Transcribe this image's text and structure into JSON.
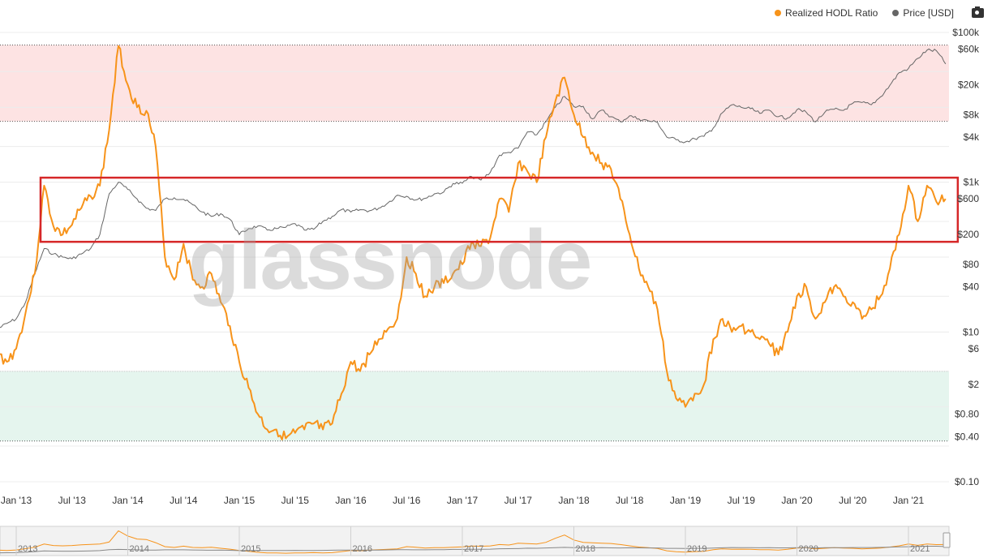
{
  "legend": {
    "hodl_label": "Realized HODL Ratio",
    "price_label": "Price [USD]",
    "hodl_color": "#f7931a",
    "price_color": "#666666",
    "camera_icon": "camera-icon"
  },
  "watermark": "glassnode",
  "chart_data": {
    "type": "line",
    "y_scale": "log",
    "ylim": [
      0.1,
      120000
    ],
    "y_ticks": [
      {
        "label": "$100k",
        "value": 100000
      },
      {
        "label": "$60k",
        "value": 60000
      },
      {
        "label": "$20k",
        "value": 20000
      },
      {
        "label": "$8k",
        "value": 8000
      },
      {
        "label": "$4k",
        "value": 4000
      },
      {
        "label": "$1k",
        "value": 1000
      },
      {
        "label": "$600",
        "value": 600
      },
      {
        "label": "$200",
        "value": 200
      },
      {
        "label": "$80",
        "value": 80
      },
      {
        "label": "$40",
        "value": 40
      },
      {
        "label": "$10",
        "value": 10
      },
      {
        "label": "$6",
        "value": 6
      },
      {
        "label": "$2",
        "value": 2
      },
      {
        "label": "$0.80",
        "value": 0.8
      },
      {
        "label": "$0.40",
        "value": 0.4
      },
      {
        "label": "$0.10",
        "value": 0.1
      }
    ],
    "x_ticks": [
      "Jan '13",
      "Jul '13",
      "Jan '14",
      "Jul '14",
      "Jan '15",
      "Jul '15",
      "Jan '16",
      "Jul '16",
      "Jan '17",
      "Jul '17",
      "Jan '18",
      "Jul '18",
      "Jan '19",
      "Jul '19",
      "Jan '20",
      "Jul '20",
      "Jan '21"
    ],
    "navigator_years": [
      "2013",
      "2014",
      "2015",
      "2016",
      "2017",
      "2018",
      "2019",
      "2020",
      "2021"
    ],
    "bands": [
      {
        "from": 6500,
        "to": 68000,
        "color": "#fde3e3"
      },
      {
        "from": 0.35,
        "to": 3,
        "color": "#e5f5ee"
      }
    ],
    "highlight_box": {
      "from": 160,
      "to": 1150,
      "x_start": "2013-01",
      "x_end": "2021-05",
      "color": "#d62728"
    },
    "series": [
      {
        "name": "Realized HODL Ratio",
        "color": "#f7931a",
        "points": [
          [
            "2012-11",
            5
          ],
          [
            "2012-12",
            4
          ],
          [
            "2013-01",
            6
          ],
          [
            "2013-02",
            18
          ],
          [
            "2013-03",
            60
          ],
          [
            "2013-04",
            900
          ],
          [
            "2013-05",
            260
          ],
          [
            "2013-06",
            200
          ],
          [
            "2013-07",
            270
          ],
          [
            "2013-08",
            450
          ],
          [
            "2013-09",
            650
          ],
          [
            "2013-10",
            900
          ],
          [
            "2013-11",
            5000
          ],
          [
            "2013-12",
            66000
          ],
          [
            "2014-01",
            20000
          ],
          [
            "2014-02",
            10000
          ],
          [
            "2014-03",
            9000
          ],
          [
            "2014-04",
            3000
          ],
          [
            "2014-05",
            100
          ],
          [
            "2014-06",
            50
          ],
          [
            "2014-07",
            150
          ],
          [
            "2014-08",
            50
          ],
          [
            "2014-09",
            40
          ],
          [
            "2014-10",
            60
          ],
          [
            "2014-11",
            25
          ],
          [
            "2014-12",
            12
          ],
          [
            "2015-01",
            4
          ],
          [
            "2015-02",
            1.8
          ],
          [
            "2015-03",
            0.8
          ],
          [
            "2015-04",
            0.5
          ],
          [
            "2015-05",
            0.5
          ],
          [
            "2015-06",
            0.38
          ],
          [
            "2015-07",
            0.45
          ],
          [
            "2015-08",
            0.5
          ],
          [
            "2015-09",
            0.6
          ],
          [
            "2015-10",
            0.5
          ],
          [
            "2015-11",
            0.6
          ],
          [
            "2015-12",
            1.5
          ],
          [
            "2016-01",
            4
          ],
          [
            "2016-02",
            3
          ],
          [
            "2016-03",
            5
          ],
          [
            "2016-04",
            8
          ],
          [
            "2016-05",
            11
          ],
          [
            "2016-06",
            15
          ],
          [
            "2016-07",
            100
          ],
          [
            "2016-08",
            60
          ],
          [
            "2016-09",
            30
          ],
          [
            "2016-10",
            40
          ],
          [
            "2016-11",
            45
          ],
          [
            "2016-12",
            60
          ],
          [
            "2017-01",
            80
          ],
          [
            "2017-02",
            160
          ],
          [
            "2017-03",
            140
          ],
          [
            "2017-04",
            180
          ],
          [
            "2017-05",
            600
          ],
          [
            "2017-06",
            400
          ],
          [
            "2017-07",
            1800
          ],
          [
            "2017-08",
            1400
          ],
          [
            "2017-09",
            1000
          ],
          [
            "2017-10",
            4000
          ],
          [
            "2017-11",
            12000
          ],
          [
            "2017-12",
            25000
          ],
          [
            "2018-01",
            8000
          ],
          [
            "2018-02",
            4000
          ],
          [
            "2018-03",
            2500
          ],
          [
            "2018-04",
            1800
          ],
          [
            "2018-05",
            1500
          ],
          [
            "2018-06",
            600
          ],
          [
            "2018-07",
            200
          ],
          [
            "2018-08",
            70
          ],
          [
            "2018-09",
            40
          ],
          [
            "2018-10",
            20
          ],
          [
            "2018-11",
            3
          ],
          [
            "2018-12",
            1.3
          ],
          [
            "2019-01",
            1
          ],
          [
            "2019-02",
            1.5
          ],
          [
            "2019-03",
            2
          ],
          [
            "2019-04",
            8
          ],
          [
            "2019-05",
            15
          ],
          [
            "2019-06",
            10
          ],
          [
            "2019-07",
            12
          ],
          [
            "2019-08",
            10
          ],
          [
            "2019-09",
            8
          ],
          [
            "2019-10",
            7
          ],
          [
            "2019-11",
            5
          ],
          [
            "2019-12",
            10
          ],
          [
            "2020-01",
            30
          ],
          [
            "2020-02",
            40
          ],
          [
            "2020-03",
            15
          ],
          [
            "2020-04",
            25
          ],
          [
            "2020-05",
            40
          ],
          [
            "2020-06",
            30
          ],
          [
            "2020-07",
            25
          ],
          [
            "2020-08",
            15
          ],
          [
            "2020-09",
            20
          ],
          [
            "2020-10",
            30
          ],
          [
            "2020-11",
            70
          ],
          [
            "2020-12",
            200
          ],
          [
            "2021-01",
            900
          ],
          [
            "2021-02",
            300
          ],
          [
            "2021-03",
            900
          ],
          [
            "2021-04",
            550
          ],
          [
            "2021-05",
            600
          ]
        ]
      },
      {
        "name": "Price [USD]",
        "color": "#666666",
        "points": [
          [
            "2012-11",
            11
          ],
          [
            "2012-12",
            13
          ],
          [
            "2013-01",
            15
          ],
          [
            "2013-02",
            25
          ],
          [
            "2013-03",
            60
          ],
          [
            "2013-04",
            130
          ],
          [
            "2013-05",
            110
          ],
          [
            "2013-06",
            100
          ],
          [
            "2013-07",
            95
          ],
          [
            "2013-08",
            110
          ],
          [
            "2013-09",
            130
          ],
          [
            "2013-10",
            200
          ],
          [
            "2013-11",
            700
          ],
          [
            "2013-12",
            1000
          ],
          [
            "2014-01",
            800
          ],
          [
            "2014-02",
            600
          ],
          [
            "2014-03",
            450
          ],
          [
            "2014-04",
            420
          ],
          [
            "2014-05",
            600
          ],
          [
            "2014-06",
            620
          ],
          [
            "2014-07",
            590
          ],
          [
            "2014-08",
            500
          ],
          [
            "2014-09",
            400
          ],
          [
            "2014-10",
            350
          ],
          [
            "2014-11",
            380
          ],
          [
            "2014-12",
            320
          ],
          [
            "2015-01",
            200
          ],
          [
            "2015-02",
            240
          ],
          [
            "2015-03",
            260
          ],
          [
            "2015-04",
            230
          ],
          [
            "2015-05",
            240
          ],
          [
            "2015-06",
            250
          ],
          [
            "2015-07",
            280
          ],
          [
            "2015-08",
            230
          ],
          [
            "2015-09",
            235
          ],
          [
            "2015-10",
            300
          ],
          [
            "2015-11",
            350
          ],
          [
            "2015-12",
            430
          ],
          [
            "2016-01",
            400
          ],
          [
            "2016-02",
            430
          ],
          [
            "2016-03",
            415
          ],
          [
            "2016-04",
            450
          ],
          [
            "2016-05",
            530
          ],
          [
            "2016-06",
            670
          ],
          [
            "2016-07",
            650
          ],
          [
            "2016-08",
            580
          ],
          [
            "2016-09",
            610
          ],
          [
            "2016-10",
            700
          ],
          [
            "2016-11",
            740
          ],
          [
            "2016-12",
            960
          ],
          [
            "2017-01",
            970
          ],
          [
            "2017-02",
            1190
          ],
          [
            "2017-03",
            1070
          ],
          [
            "2017-04",
            1350
          ],
          [
            "2017-05",
            2300
          ],
          [
            "2017-06",
            2500
          ],
          [
            "2017-07",
            2850
          ],
          [
            "2017-08",
            4700
          ],
          [
            "2017-09",
            4300
          ],
          [
            "2017-10",
            6400
          ],
          [
            "2017-11",
            10000
          ],
          [
            "2017-12",
            14000
          ],
          [
            "2018-01",
            10200
          ],
          [
            "2018-02",
            10300
          ],
          [
            "2018-03",
            7000
          ],
          [
            "2018-04",
            9200
          ],
          [
            "2018-05",
            7500
          ],
          [
            "2018-06",
            6400
          ],
          [
            "2018-07",
            7700
          ],
          [
            "2018-08",
            7000
          ],
          [
            "2018-09",
            6600
          ],
          [
            "2018-10",
            6300
          ],
          [
            "2018-11",
            4000
          ],
          [
            "2018-12",
            3700
          ],
          [
            "2019-01",
            3450
          ],
          [
            "2019-02",
            3800
          ],
          [
            "2019-03",
            4100
          ],
          [
            "2019-04",
            5300
          ],
          [
            "2019-05",
            8500
          ],
          [
            "2019-06",
            10800
          ],
          [
            "2019-07",
            10000
          ],
          [
            "2019-08",
            9600
          ],
          [
            "2019-09",
            8300
          ],
          [
            "2019-10",
            9200
          ],
          [
            "2019-11",
            7500
          ],
          [
            "2019-12",
            7200
          ],
          [
            "2020-01",
            9300
          ],
          [
            "2020-02",
            8600
          ],
          [
            "2020-03",
            6400
          ],
          [
            "2020-04",
            8600
          ],
          [
            "2020-05",
            9400
          ],
          [
            "2020-06",
            9100
          ],
          [
            "2020-07",
            11300
          ],
          [
            "2020-08",
            11600
          ],
          [
            "2020-09",
            10800
          ],
          [
            "2020-10",
            13800
          ],
          [
            "2020-11",
            19700
          ],
          [
            "2020-12",
            29000
          ],
          [
            "2021-01",
            33000
          ],
          [
            "2021-02",
            45000
          ],
          [
            "2021-03",
            58000
          ],
          [
            "2021-04",
            57000
          ],
          [
            "2021-05",
            38000
          ]
        ]
      }
    ]
  }
}
